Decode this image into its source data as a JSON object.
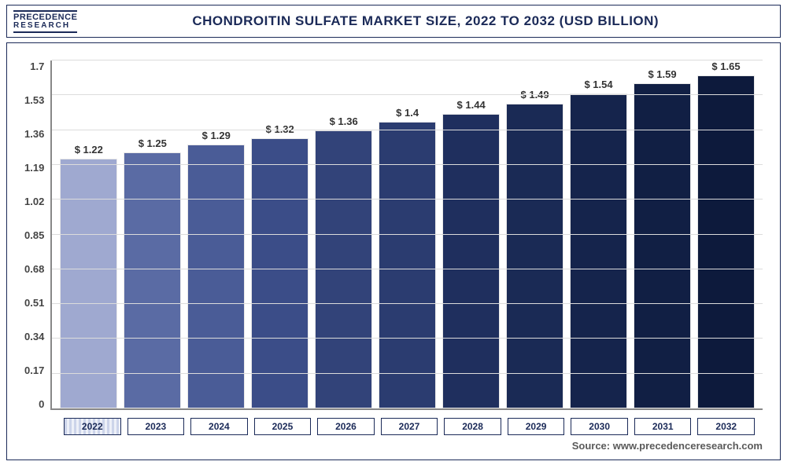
{
  "logo": {
    "line1": "PRECEDENCE",
    "line2": "RESEARCH"
  },
  "title": "CHONDROITIN SULFATE MARKET SIZE, 2022 TO 2032 (USD BILLION)",
  "source": "Source: www.precedenceresearch.com",
  "chart": {
    "type": "bar",
    "ylim": [
      0,
      1.7
    ],
    "ytick_step": 0.17,
    "yticks": [
      "0",
      "0.17",
      "0.34",
      "0.51",
      "0.68",
      "0.85",
      "1.02",
      "1.19",
      "1.36",
      "1.53",
      "1.7"
    ],
    "background_color": "#ffffff",
    "grid_color": "#dcdcdc",
    "axis_color": "#888888",
    "label_fontsize": 13,
    "label_color": "#333333",
    "tick_fontsize": 13,
    "tick_color": "#444444",
    "bar_border_color": "#e8e8e8",
    "bars": [
      {
        "year": "2022",
        "value": 1.22,
        "label": "$ 1.22",
        "color": "#9fa9d0"
      },
      {
        "year": "2023",
        "value": 1.25,
        "label": "$ 1.25",
        "color": "#5a6ba4"
      },
      {
        "year": "2024",
        "value": 1.29,
        "label": "$ 1.29",
        "color": "#4a5c97"
      },
      {
        "year": "2025",
        "value": 1.32,
        "label": "$ 1.32",
        "color": "#3b4d88"
      },
      {
        "year": "2026",
        "value": 1.36,
        "label": "$ 1.36",
        "color": "#324379"
      },
      {
        "year": "2027",
        "value": 1.4,
        "label": "$ 1.4",
        "color": "#2b3c70"
      },
      {
        "year": "2028",
        "value": 1.44,
        "label": "$ 1.44",
        "color": "#1f2f5e"
      },
      {
        "year": "2029",
        "value": 1.49,
        "label": "$ 1.49",
        "color": "#1a2a55"
      },
      {
        "year": "2030",
        "value": 1.54,
        "label": "$ 1.54",
        "color": "#15244c"
      },
      {
        "year": "2031",
        "value": 1.59,
        "label": "$ 1.59",
        "color": "#111f44"
      },
      {
        "year": "2032",
        "value": 1.65,
        "label": "$ 1.65",
        "color": "#0d1a3c"
      }
    ]
  }
}
